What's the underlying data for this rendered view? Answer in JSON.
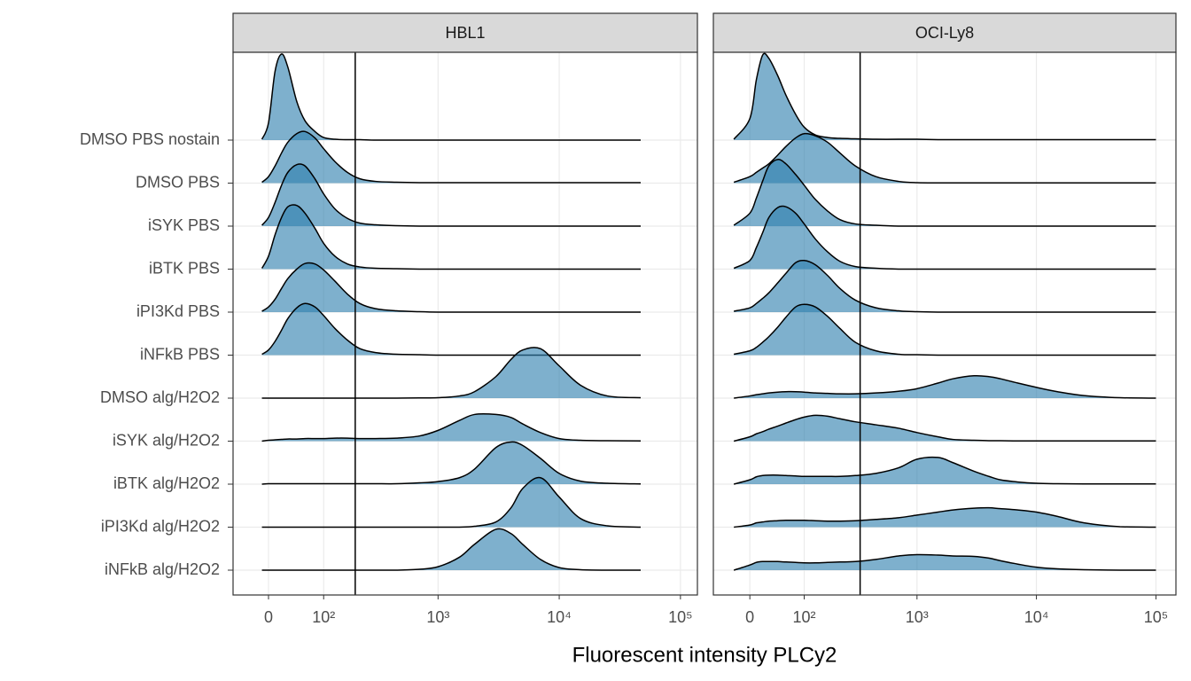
{
  "xlabel": "Fluorescent intensity PLCy2",
  "categories": [
    "DMSO PBS nostain",
    "DMSO PBS",
    "iSYK PBS",
    "iBTK PBS",
    "iPI3Kd PBS",
    "iNFkB PBS",
    "DMSO alg/H2O2",
    "iSYK alg/H2O2",
    "iBTK alg/H2O2",
    "iPI3Kd alg/H2O2",
    "iNFkB alg/H2O2"
  ],
  "chart_data": [
    {
      "type": "ridgeline",
      "title": "HBL1",
      "color": "#2f7fae",
      "grid": true,
      "vline": 200,
      "xlim": [
        -58,
        138000
      ],
      "xticks": [
        0,
        {
          "value": 100,
          "label": "10²"
        },
        {
          "value": 1000,
          "label": "10³"
        },
        {
          "value": 10000,
          "label": "10⁴"
        },
        {
          "value": 100000,
          "label": "10⁵"
        }
      ],
      "x": [
        -10,
        0,
        10,
        20,
        30,
        45,
        60,
        80,
        100,
        130,
        170,
        220,
        300,
        450,
        700,
        1000,
        1500,
        2000,
        3000,
        4000,
        5000,
        7000,
        10000,
        15000,
        25000,
        47000
      ],
      "series": [
        {
          "values": [
            0.02,
            0.4,
            1.6,
            2.0,
            1.7,
            0.9,
            0.45,
            0.2,
            0.06,
            0.02,
            0.01,
            0.01,
            0,
            0,
            0,
            0,
            0,
            0,
            0,
            0,
            0,
            0,
            0,
            0,
            0,
            0
          ]
        },
        {
          "values": [
            0.02,
            0.15,
            0.4,
            0.7,
            0.95,
            1.15,
            1.2,
            1.05,
            0.8,
            0.5,
            0.25,
            0.1,
            0.04,
            0.02,
            0.01,
            0.01,
            0.01,
            0.01,
            0.01,
            0.01,
            0.01,
            0.01,
            0.01,
            0.01,
            0.01,
            0.01
          ]
        },
        {
          "values": [
            0.02,
            0.2,
            0.55,
            0.95,
            1.25,
            1.43,
            1.4,
            1.1,
            0.75,
            0.4,
            0.18,
            0.07,
            0.03,
            0.01,
            0,
            0,
            0,
            0,
            0,
            0,
            0,
            0,
            0,
            0,
            0,
            0
          ]
        },
        {
          "values": [
            0.02,
            0.3,
            0.8,
            1.2,
            1.45,
            1.48,
            1.3,
            0.95,
            0.6,
            0.3,
            0.12,
            0.05,
            0.02,
            0.01,
            0,
            0,
            0,
            0,
            0,
            0,
            0,
            0,
            0,
            0,
            0,
            0
          ]
        },
        {
          "values": [
            0.02,
            0.12,
            0.3,
            0.55,
            0.78,
            1.0,
            1.13,
            1.12,
            0.98,
            0.72,
            0.42,
            0.2,
            0.08,
            0.03,
            0.01,
            0,
            0,
            0,
            0,
            0,
            0,
            0,
            0,
            0,
            0,
            0
          ]
        },
        {
          "values": [
            0.02,
            0.12,
            0.32,
            0.58,
            0.85,
            1.1,
            1.2,
            1.12,
            0.92,
            0.62,
            0.35,
            0.15,
            0.06,
            0.02,
            0.01,
            0,
            0,
            0,
            0,
            0,
            0,
            0,
            0,
            0,
            0,
            0
          ]
        },
        {
          "values": [
            0,
            0,
            0,
            0,
            0,
            0,
            0,
            0,
            0,
            0,
            0,
            0,
            0,
            0,
            0.005,
            0.01,
            0.05,
            0.15,
            0.5,
            0.9,
            1.12,
            1.15,
            0.75,
            0.3,
            0.05,
            0.01
          ]
        },
        {
          "values": [
            0,
            0.02,
            0.03,
            0.04,
            0.05,
            0.05,
            0.06,
            0.06,
            0.06,
            0.07,
            0.07,
            0.06,
            0.06,
            0.07,
            0.12,
            0.25,
            0.48,
            0.62,
            0.62,
            0.55,
            0.4,
            0.2,
            0.06,
            0.02,
            0.01,
            0.005
          ]
        },
        {
          "values": [
            0,
            0.01,
            0.01,
            0.01,
            0.01,
            0.01,
            0.01,
            0.01,
            0.01,
            0.01,
            0.01,
            0.01,
            0.01,
            0.01,
            0.03,
            0.06,
            0.15,
            0.35,
            0.85,
            0.98,
            0.9,
            0.6,
            0.25,
            0.07,
            0.02,
            0.005
          ]
        },
        {
          "values": [
            0,
            0,
            0,
            0,
            0,
            0,
            0,
            0,
            0,
            0,
            0,
            0,
            0,
            0,
            0,
            0,
            0,
            0.02,
            0.12,
            0.45,
            0.9,
            1.15,
            0.7,
            0.2,
            0.03,
            0
          ]
        },
        {
          "values": [
            0,
            0,
            0,
            0,
            0,
            0,
            0,
            0,
            0,
            0,
            0,
            0,
            0,
            0,
            0.02,
            0.08,
            0.3,
            0.6,
            0.95,
            0.85,
            0.6,
            0.25,
            0.06,
            0.01,
            0,
            0
          ]
        }
      ]
    },
    {
      "type": "ridgeline",
      "title": "OCI-Ly8",
      "color": "#2f7fae",
      "grid": true,
      "vline": 330,
      "xlim": [
        -61,
        147000
      ],
      "xticks": [
        0,
        {
          "value": 100,
          "label": "10²"
        },
        {
          "value": 1000,
          "label": "10³"
        },
        {
          "value": 10000,
          "label": "10⁴"
        },
        {
          "value": 100000,
          "label": "10⁵"
        }
      ],
      "x": [
        -25,
        0,
        10,
        20,
        30,
        45,
        60,
        80,
        100,
        130,
        170,
        220,
        300,
        450,
        700,
        1000,
        1500,
        2000,
        3000,
        4000,
        5000,
        7000,
        10000,
        15000,
        25000,
        50000,
        100000
      ],
      "series": [
        {
          "values": [
            0.02,
            0.5,
            1.4,
            1.98,
            1.9,
            1.5,
            1.05,
            0.6,
            0.3,
            0.12,
            0.06,
            0.04,
            0.03,
            0.02,
            0.02,
            0.02,
            0.01,
            0.01,
            0.01,
            0.01,
            0.01,
            0.01,
            0.01,
            0.01,
            0.01,
            0.01,
            0.01
          ]
        },
        {
          "values": [
            0.02,
            0.15,
            0.25,
            0.35,
            0.45,
            0.65,
            0.85,
            1.05,
            1.15,
            1.1,
            0.95,
            0.7,
            0.4,
            0.15,
            0.04,
            0.01,
            0.005,
            0.005,
            0.005,
            0.005,
            0.005,
            0.005,
            0.005,
            0.005,
            0.005,
            0.005,
            0.005
          ]
        },
        {
          "values": [
            0.02,
            0.3,
            0.65,
            1.05,
            1.4,
            1.55,
            1.45,
            1.2,
            0.95,
            0.62,
            0.35,
            0.15,
            0.05,
            0.02,
            0,
            0,
            0,
            0,
            0,
            0,
            0,
            0,
            0,
            0,
            0,
            0,
            0
          ]
        },
        {
          "values": [
            0.02,
            0.2,
            0.5,
            0.85,
            1.2,
            1.43,
            1.45,
            1.3,
            1.05,
            0.7,
            0.4,
            0.18,
            0.06,
            0.02,
            0,
            0,
            0,
            0,
            0,
            0,
            0,
            0,
            0,
            0,
            0,
            0,
            0
          ]
        },
        {
          "values": [
            0.02,
            0.1,
            0.2,
            0.32,
            0.45,
            0.68,
            0.9,
            1.15,
            1.2,
            1.1,
            0.85,
            0.55,
            0.28,
            0.1,
            0.03,
            0.01,
            0,
            0,
            0,
            0,
            0,
            0,
            0,
            0,
            0,
            0,
            0
          ]
        },
        {
          "values": [
            0.02,
            0.1,
            0.18,
            0.3,
            0.43,
            0.65,
            0.88,
            1.12,
            1.18,
            1.12,
            0.9,
            0.62,
            0.3,
            0.1,
            0.02,
            0.01,
            0,
            0,
            0,
            0,
            0,
            0,
            0,
            0,
            0,
            0,
            0
          ]
        },
        {
          "values": [
            0,
            0.05,
            0.08,
            0.1,
            0.12,
            0.14,
            0.15,
            0.15,
            0.14,
            0.12,
            0.11,
            0.1,
            0.1,
            0.12,
            0.16,
            0.22,
            0.35,
            0.45,
            0.52,
            0.5,
            0.45,
            0.35,
            0.25,
            0.15,
            0.06,
            0.01,
            0
          ]
        },
        {
          "values": [
            0,
            0.1,
            0.17,
            0.22,
            0.28,
            0.35,
            0.42,
            0.5,
            0.56,
            0.6,
            0.58,
            0.52,
            0.45,
            0.38,
            0.3,
            0.2,
            0.1,
            0.04,
            0.02,
            0.01,
            0.01,
            0.005,
            0.005,
            0.005,
            0.005,
            0.005,
            0.005
          ]
        },
        {
          "values": [
            0,
            0.1,
            0.17,
            0.2,
            0.21,
            0.21,
            0.2,
            0.19,
            0.18,
            0.18,
            0.18,
            0.18,
            0.2,
            0.25,
            0.38,
            0.58,
            0.62,
            0.5,
            0.3,
            0.18,
            0.1,
            0.05,
            0.02,
            0.01,
            0.005,
            0.005,
            0.005
          ]
        },
        {
          "values": [
            0,
            0.05,
            0.1,
            0.12,
            0.14,
            0.15,
            0.16,
            0.16,
            0.16,
            0.15,
            0.14,
            0.14,
            0.15,
            0.18,
            0.22,
            0.28,
            0.35,
            0.4,
            0.44,
            0.45,
            0.43,
            0.4,
            0.35,
            0.25,
            0.1,
            0.01,
            0
          ]
        },
        {
          "values": [
            0,
            0.12,
            0.18,
            0.2,
            0.2,
            0.2,
            0.19,
            0.18,
            0.17,
            0.17,
            0.18,
            0.19,
            0.2,
            0.25,
            0.33,
            0.36,
            0.35,
            0.33,
            0.32,
            0.28,
            0.22,
            0.14,
            0.07,
            0.03,
            0.01,
            0,
            0
          ]
        }
      ]
    }
  ]
}
